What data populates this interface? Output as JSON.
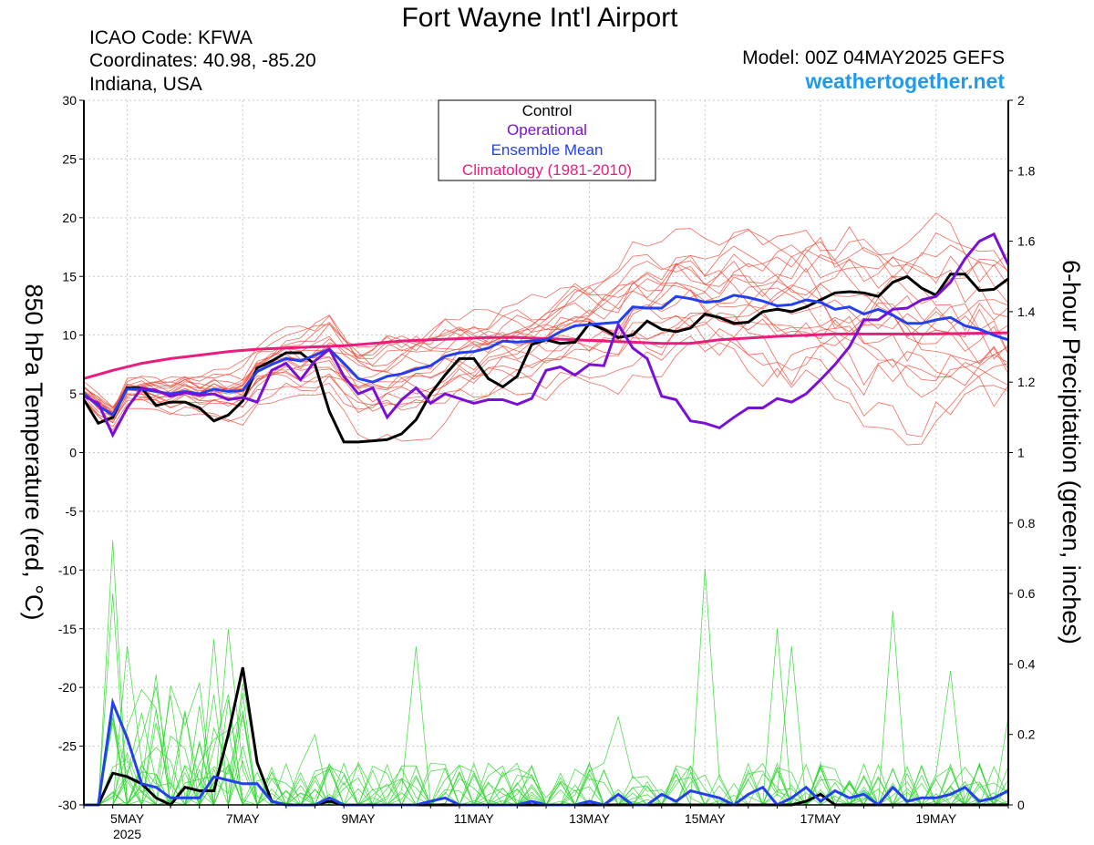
{
  "header": {
    "title": "Fort Wayne Int'l Airport",
    "icao": "ICAO Code: KFWA",
    "coords": "Coordinates: 40.98, -85.20",
    "region": "Indiana, USA",
    "model": "Model: 00Z 04MAY2025 GEFS",
    "brand": "weathertogether.net"
  },
  "colors": {
    "control": "#000000",
    "operational": "#7a10d6",
    "ensemble_mean": "#2340ee",
    "climatology": "#ea1c7c",
    "members_temp": "#f05040",
    "members_precip": "#33d633",
    "brand": "#1e9bf0"
  },
  "chart_data": {
    "type": "line",
    "ylabel_left": "850 hPa Temperature (red, °C)",
    "ylabel_right": "6-hour Precipitation (green, inches)",
    "xlim": [
      0,
      64
    ],
    "ylim_left": [
      -30,
      30
    ],
    "ylim_right": [
      0,
      2
    ],
    "left_ticks": [
      "30",
      "25",
      "20",
      "15",
      "10",
      "5",
      "0",
      "-5",
      "-10",
      "-15",
      "-20",
      "-25",
      "-30"
    ],
    "right_ticks": [
      "2",
      "1.8",
      "1.6",
      "1.4",
      "1.2",
      "1",
      "0.8",
      "0.6",
      "0.4",
      "0.2",
      "0"
    ],
    "x_tick_labels": [
      {
        "x": 3,
        "label": "5MAY"
      },
      {
        "x": 11,
        "label": "7MAY"
      },
      {
        "x": 19,
        "label": "9MAY"
      },
      {
        "x": 27,
        "label": "11MAY"
      },
      {
        "x": 35,
        "label": "13MAY"
      },
      {
        "x": 43,
        "label": "15MAY"
      },
      {
        "x": 51,
        "label": "17MAY"
      },
      {
        "x": 59,
        "label": "19MAY"
      }
    ],
    "x_year_label": {
      "x": 3,
      "label": "2025"
    },
    "grid": true,
    "legend_position": "top-center",
    "legend": [
      "Control",
      "Operational",
      "Ensemble Mean",
      "Climatology (1981-2010)"
    ],
    "temperature": {
      "control": [
        4.5,
        2.5,
        3,
        5.5,
        5.5,
        4,
        4.3,
        4.3,
        3.8,
        2.7,
        3.2,
        4.4,
        7.2,
        7.8,
        8.5,
        8.5,
        7.5,
        3.5,
        0.9,
        0.9,
        1,
        1.1,
        1.6,
        2.8,
        5,
        6.6,
        8,
        8,
        6.3,
        5.6,
        6.5,
        9.2,
        9.6,
        9.3,
        9.4,
        11,
        10.5,
        9.8,
        10,
        11.2,
        10.5,
        10.3,
        10.6,
        11.8,
        11.5,
        11,
        11.1,
        12,
        12.2,
        12,
        12.4,
        13,
        13.6,
        13.7,
        13.6,
        13.3,
        14.5,
        15,
        14,
        13.4,
        15.2,
        15.2,
        13.8,
        13.9,
        14.8
      ],
      "operational": [
        4.8,
        4.2,
        1.5,
        3.8,
        5.5,
        5.3,
        4.8,
        5.1,
        4.9,
        5,
        4.5,
        4.7,
        4.3,
        7,
        7.6,
        6.2,
        7.8,
        8.8,
        6.5,
        5,
        5.5,
        3,
        4.5,
        5.5,
        4.2,
        5,
        4.6,
        4.2,
        4.5,
        4.5,
        4.1,
        4.6,
        7,
        7.3,
        6.6,
        7.5,
        7.4,
        10.9,
        8.9,
        8,
        4.8,
        4.5,
        2.7,
        2.5,
        2.1,
        3,
        3.8,
        3.8,
        4.6,
        4.3,
        5,
        6.2,
        7.5,
        9,
        11.3,
        11.3,
        12.2,
        12.3,
        13,
        13.3,
        14.5,
        16.5,
        18,
        18.6,
        16
      ],
      "ensemble_mean": [
        5,
        4,
        3.2,
        5.4,
        5.4,
        5.2,
        5,
        5.2,
        5,
        5.4,
        5.2,
        5.3,
        6.9,
        7.5,
        8,
        7.8,
        8.3,
        8.8,
        7.6,
        6.3,
        6,
        6.5,
        6.7,
        7.1,
        7.4,
        8.2,
        8.5,
        8.6,
        8.9,
        9.5,
        9.4,
        9.5,
        9.6,
        10.3,
        10.8,
        10.9,
        11,
        11.1,
        12.4,
        12.3,
        12.3,
        13.3,
        13.1,
        12.8,
        12.9,
        13.4,
        13.2,
        12.9,
        12.5,
        12.6,
        13,
        12.8,
        12.2,
        12.4,
        11.8,
        12.2,
        11.7,
        11,
        11,
        11.3,
        11.5,
        10.8,
        10.5,
        10,
        9.6
      ],
      "climatology": [
        6.3,
        7,
        7.6,
        8,
        8.3,
        8.6,
        8.8,
        8.9,
        9,
        9.1,
        9.3,
        9.5,
        9.6,
        9.7,
        9.8,
        9.8,
        9.7,
        9.6,
        9.5,
        9.4,
        9.3,
        9.3,
        9.6,
        9.9,
        10.1,
        10.1,
        10.2
      ],
      "climatology_x": [
        0,
        2,
        4,
        6,
        8,
        10,
        12,
        14,
        16,
        18,
        20,
        22,
        24,
        26,
        28,
        30,
        32,
        34,
        36,
        38,
        40,
        42,
        44,
        48,
        52,
        58,
        64
      ],
      "members_count": 20,
      "members_spread": [
        0.6,
        0.6,
        0.6,
        0.7,
        0.7,
        0.7,
        0.8,
        0.8,
        0.8,
        0.9,
        0.9,
        1,
        1,
        1.1,
        1.2,
        1.3,
        1.4,
        1.6,
        1.8,
        2,
        2.1,
        2.2,
        2.3,
        2.3,
        2.3,
        2.3,
        2.2,
        2.2,
        2.2,
        2.3,
        2.3,
        2.3,
        2.4,
        2.4,
        2.5,
        2.6,
        2.7,
        2.8,
        2.9,
        3,
        3.1,
        3.3,
        3.5,
        3.7,
        3.9,
        4.1,
        4.3,
        4.5,
        4.7,
        4.9,
        5,
        5.1,
        5.2,
        5.3,
        5.4,
        5.4,
        5.5,
        5.5,
        5.5,
        5.5,
        5.5,
        5.5,
        5.5,
        5.5,
        5.5
      ]
    },
    "precipitation": {
      "control": [
        0,
        0,
        0.09,
        0.08,
        0.06,
        0.02,
        0,
        0.05,
        0.04,
        0.04,
        0.2,
        0.39,
        0.12,
        0.01,
        0,
        0,
        0,
        0.01,
        0,
        0,
        0,
        0,
        0,
        0,
        0,
        0,
        0,
        0,
        0,
        0,
        0,
        0,
        0,
        0,
        0,
        0,
        0,
        0,
        0,
        0,
        0,
        0,
        0,
        0,
        0,
        0,
        0,
        0,
        0,
        0,
        0.01,
        0.03,
        0,
        0,
        0,
        0,
        0,
        0,
        0,
        0,
        0,
        0,
        0,
        0,
        0
      ],
      "ensemble_mean": [
        0,
        0,
        0.29,
        0.19,
        0.06,
        0.05,
        0.02,
        0.02,
        0.02,
        0.08,
        0.07,
        0.06,
        0.06,
        0.01,
        0,
        0,
        0,
        0.02,
        0,
        0,
        0,
        0,
        0,
        0,
        0.01,
        0.02,
        0,
        0,
        0,
        0,
        0,
        0.01,
        0,
        0,
        0,
        0.01,
        0,
        0.03,
        0,
        0,
        0.03,
        0.01,
        0.04,
        0.03,
        0.02,
        0,
        0.03,
        0.05,
        0,
        0.02,
        0.05,
        0.01,
        0.04,
        0.02,
        0.03,
        0,
        0.05,
        0.01,
        0.02,
        0.02,
        0.03,
        0.05,
        0.01,
        0.02,
        0.04
      ],
      "members_count": 20,
      "member_peaks": [
        {
          "x": 2,
          "value": 0.75
        },
        {
          "x": 2,
          "value": 0.6
        },
        {
          "x": 3,
          "value": 0.45
        },
        {
          "x": 5,
          "value": 0.37
        },
        {
          "x": 9,
          "value": 0.47
        },
        {
          "x": 10,
          "value": 0.5
        },
        {
          "x": 16,
          "value": 0.2
        },
        {
          "x": 23,
          "value": 0.45
        },
        {
          "x": 37,
          "value": 0.25
        },
        {
          "x": 43,
          "value": 0.67
        },
        {
          "x": 48,
          "value": 0.5
        },
        {
          "x": 49,
          "value": 0.45
        },
        {
          "x": 56,
          "value": 0.55
        },
        {
          "x": 60,
          "value": 0.38
        },
        {
          "x": 64,
          "value": 0.25
        }
      ]
    }
  }
}
